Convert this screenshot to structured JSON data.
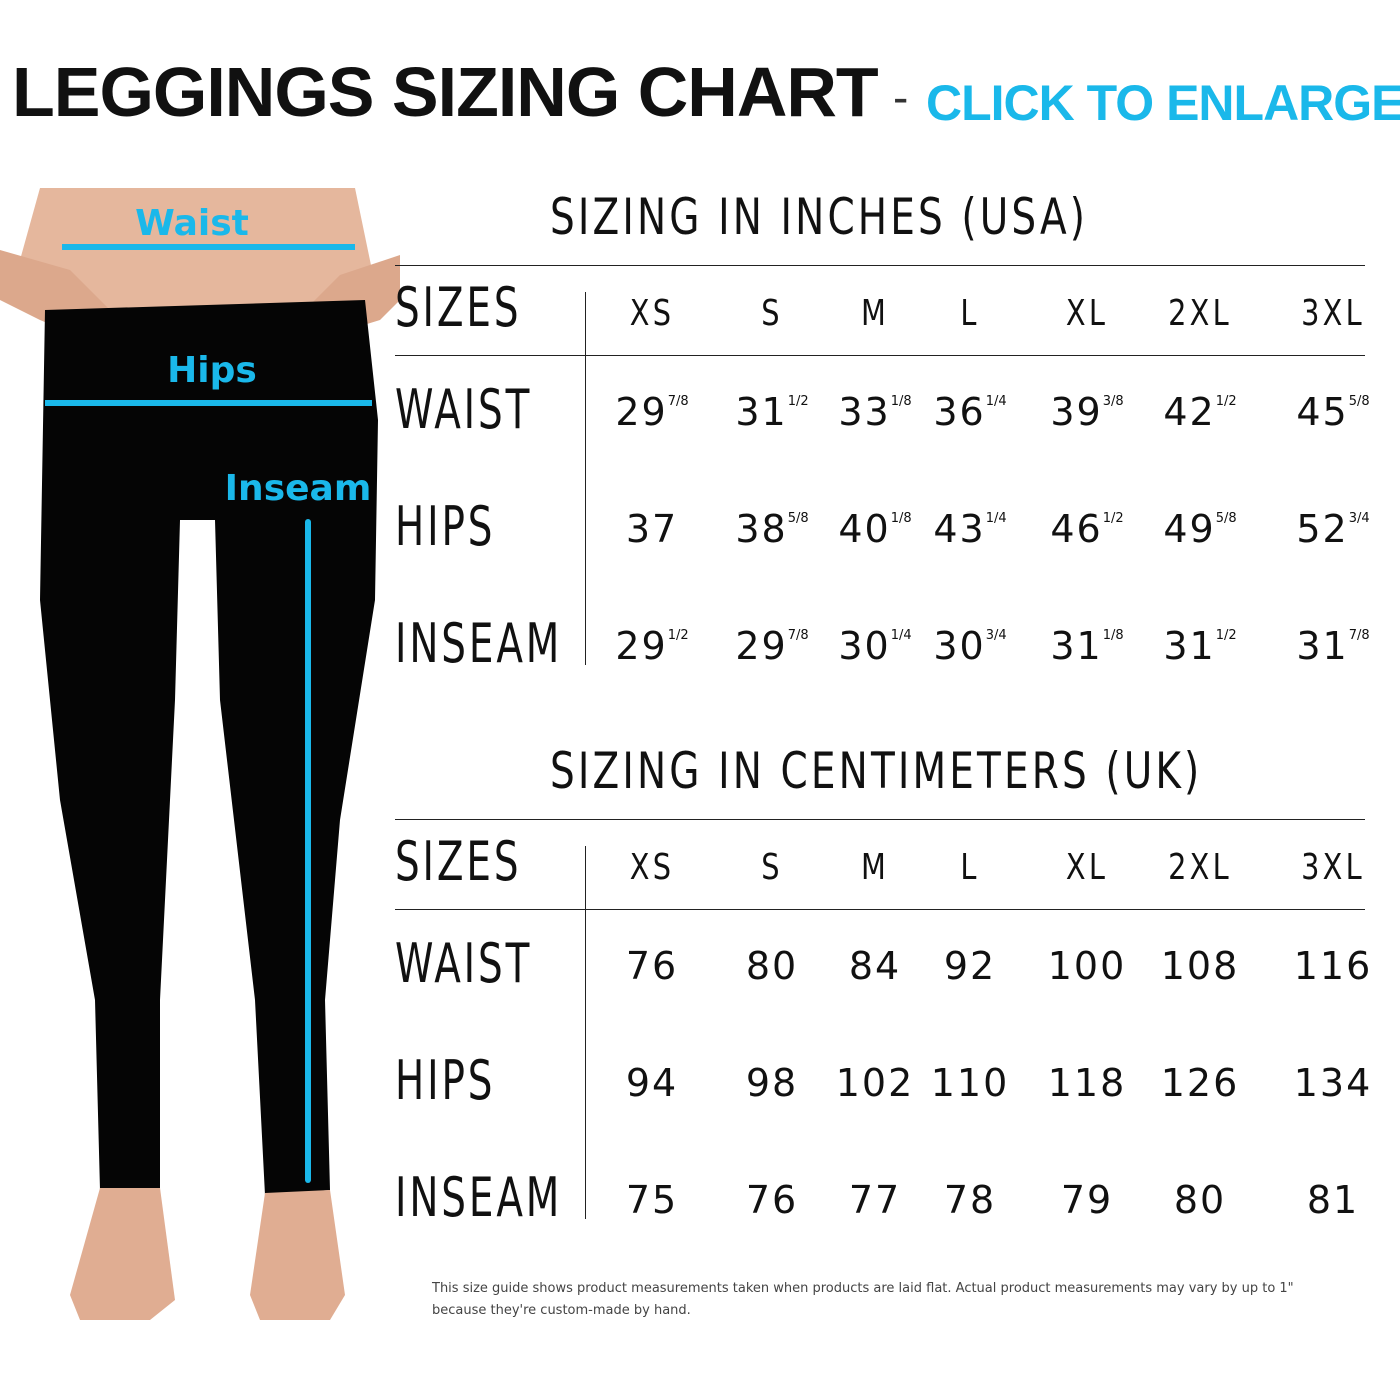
{
  "header": {
    "title": "LEGGINGS SIZING CHART",
    "separator": "-",
    "link": "CLICK TO ENLARGE"
  },
  "figure": {
    "labels": [
      "Waist",
      "Hips",
      "Inseam"
    ]
  },
  "tables": [
    {
      "title": "SIZING IN INCHES (USA)",
      "header": {
        "label": "SIZES",
        "sizes": [
          "XS",
          "S",
          "M",
          "L",
          "XL",
          "2XL",
          "3XL"
        ]
      },
      "rows": [
        {
          "label": "WAIST",
          "cells": [
            {
              "n": "29",
              "frac": "7/8"
            },
            {
              "n": "31",
              "frac": "1/2"
            },
            {
              "n": "33",
              "frac": "1/8"
            },
            {
              "n": "36",
              "frac": "1/4"
            },
            {
              "n": "39",
              "frac": "3/8"
            },
            {
              "n": "42",
              "frac": "1/2"
            },
            {
              "n": "45",
              "frac": "5/8"
            }
          ]
        },
        {
          "label": "HIPS",
          "cells": [
            {
              "n": "37"
            },
            {
              "n": "38",
              "frac": "5/8"
            },
            {
              "n": "40",
              "frac": "1/8"
            },
            {
              "n": "43",
              "frac": "1/4"
            },
            {
              "n": "46",
              "frac": "1/2"
            },
            {
              "n": "49",
              "frac": "5/8"
            },
            {
              "n": "52",
              "frac": "3/4"
            }
          ]
        },
        {
          "label": "INSEAM",
          "cells": [
            {
              "n": "29",
              "frac": "1/2"
            },
            {
              "n": "29",
              "frac": "7/8"
            },
            {
              "n": "30",
              "frac": "1/4"
            },
            {
              "n": "30",
              "frac": "3/4"
            },
            {
              "n": "31",
              "frac": "1/8"
            },
            {
              "n": "31",
              "frac": "1/2"
            },
            {
              "n": "31",
              "frac": "7/8"
            }
          ]
        }
      ]
    },
    {
      "title": "SIZING IN CENTIMETERS (UK)",
      "header": {
        "label": "SIZES",
        "sizes": [
          "XS",
          "S",
          "M",
          "L",
          "XL",
          "2XL",
          "3XL"
        ]
      },
      "rows": [
        {
          "label": "WAIST",
          "cells": [
            {
              "n": "76"
            },
            {
              "n": "80"
            },
            {
              "n": "84"
            },
            {
              "n": "92"
            },
            {
              "n": "100"
            },
            {
              "n": "108"
            },
            {
              "n": "116"
            }
          ]
        },
        {
          "label": "HIPS",
          "cells": [
            {
              "n": "94"
            },
            {
              "n": "98"
            },
            {
              "n": "102"
            },
            {
              "n": "110"
            },
            {
              "n": "118"
            },
            {
              "n": "126"
            },
            {
              "n": "134"
            }
          ]
        },
        {
          "label": "INSEAM",
          "cells": [
            {
              "n": "75"
            },
            {
              "n": "76"
            },
            {
              "n": "77"
            },
            {
              "n": "78"
            },
            {
              "n": "79"
            },
            {
              "n": "80"
            },
            {
              "n": "81"
            }
          ]
        }
      ]
    }
  ],
  "footer": [
    "This size guide shows product measurements taken when products are laid flat. Actual product measurements may vary by up to 1\"",
    "because they're custom-made by hand."
  ]
}
